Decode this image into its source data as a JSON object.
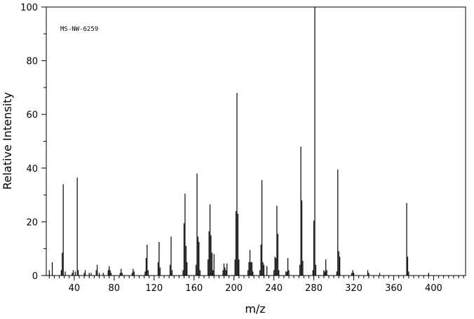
{
  "chart_data": {
    "type": "bar",
    "spectrum_id": "MS-NW-6259",
    "xlabel": "m/z",
    "ylabel": "Relative Intensity",
    "xlim": [
      12,
      432
    ],
    "ylim": [
      0,
      100
    ],
    "xticks": [
      40,
      80,
      120,
      160,
      200,
      240,
      280,
      320,
      360,
      400
    ],
    "yticks": [
      0,
      20,
      40,
      60,
      80,
      100
    ],
    "grid": false,
    "peaks": [
      {
        "mz": 15,
        "intensity": 2
      },
      {
        "mz": 18,
        "intensity": 5
      },
      {
        "mz": 27,
        "intensity": 2
      },
      {
        "mz": 28,
        "intensity": 8.5
      },
      {
        "mz": 29,
        "intensity": 34
      },
      {
        "mz": 31,
        "intensity": 1.5
      },
      {
        "mz": 38,
        "intensity": 1
      },
      {
        "mz": 39,
        "intensity": 2
      },
      {
        "mz": 41,
        "intensity": 1.5
      },
      {
        "mz": 43,
        "intensity": 36.5
      },
      {
        "mz": 44,
        "intensity": 2
      },
      {
        "mz": 50,
        "intensity": 1
      },
      {
        "mz": 51,
        "intensity": 2
      },
      {
        "mz": 55,
        "intensity": 1
      },
      {
        "mz": 57,
        "intensity": 1
      },
      {
        "mz": 62,
        "intensity": 2
      },
      {
        "mz": 63,
        "intensity": 4
      },
      {
        "mz": 65,
        "intensity": 1
      },
      {
        "mz": 69,
        "intensity": 1
      },
      {
        "mz": 74,
        "intensity": 2
      },
      {
        "mz": 75,
        "intensity": 3.5
      },
      {
        "mz": 76,
        "intensity": 2
      },
      {
        "mz": 77,
        "intensity": 1
      },
      {
        "mz": 86,
        "intensity": 1
      },
      {
        "mz": 87,
        "intensity": 2.5
      },
      {
        "mz": 88,
        "intensity": 1
      },
      {
        "mz": 98,
        "intensity": 1
      },
      {
        "mz": 99,
        "intensity": 2.5
      },
      {
        "mz": 100,
        "intensity": 1.5
      },
      {
        "mz": 111,
        "intensity": 1.5
      },
      {
        "mz": 112,
        "intensity": 6.5
      },
      {
        "mz": 113,
        "intensity": 11.5
      },
      {
        "mz": 114,
        "intensity": 2
      },
      {
        "mz": 124,
        "intensity": 5
      },
      {
        "mz": 125,
        "intensity": 12.5
      },
      {
        "mz": 126,
        "intensity": 3
      },
      {
        "mz": 136,
        "intensity": 4
      },
      {
        "mz": 137,
        "intensity": 14.5
      },
      {
        "mz": 138,
        "intensity": 2
      },
      {
        "mz": 149,
        "intensity": 2
      },
      {
        "mz": 150,
        "intensity": 19.5
      },
      {
        "mz": 151,
        "intensity": 30.5
      },
      {
        "mz": 152,
        "intensity": 11
      },
      {
        "mz": 153,
        "intensity": 5
      },
      {
        "mz": 162,
        "intensity": 4
      },
      {
        "mz": 163,
        "intensity": 38
      },
      {
        "mz": 164,
        "intensity": 14.5
      },
      {
        "mz": 165,
        "intensity": 12.5
      },
      {
        "mz": 166,
        "intensity": 2
      },
      {
        "mz": 174,
        "intensity": 6
      },
      {
        "mz": 175,
        "intensity": 16.5
      },
      {
        "mz": 176,
        "intensity": 26.5
      },
      {
        "mz": 177,
        "intensity": 15
      },
      {
        "mz": 178,
        "intensity": 8.5
      },
      {
        "mz": 179,
        "intensity": 2
      },
      {
        "mz": 180,
        "intensity": 8
      },
      {
        "mz": 189,
        "intensity": 2
      },
      {
        "mz": 190,
        "intensity": 4.5
      },
      {
        "mz": 191,
        "intensity": 3
      },
      {
        "mz": 192,
        "intensity": 2
      },
      {
        "mz": 193,
        "intensity": 4.5
      },
      {
        "mz": 201,
        "intensity": 6
      },
      {
        "mz": 202,
        "intensity": 24
      },
      {
        "mz": 203,
        "intensity": 68
      },
      {
        "mz": 204,
        "intensity": 23
      },
      {
        "mz": 205,
        "intensity": 6
      },
      {
        "mz": 214,
        "intensity": 2
      },
      {
        "mz": 215,
        "intensity": 5
      },
      {
        "mz": 216,
        "intensity": 9.5
      },
      {
        "mz": 217,
        "intensity": 5
      },
      {
        "mz": 218,
        "intensity": 5
      },
      {
        "mz": 219,
        "intensity": 1.5
      },
      {
        "mz": 226,
        "intensity": 2
      },
      {
        "mz": 227,
        "intensity": 11.5
      },
      {
        "mz": 228,
        "intensity": 35.5
      },
      {
        "mz": 229,
        "intensity": 5
      },
      {
        "mz": 230,
        "intensity": 4
      },
      {
        "mz": 233,
        "intensity": 3.5
      },
      {
        "mz": 240,
        "intensity": 2
      },
      {
        "mz": 241,
        "intensity": 7
      },
      {
        "mz": 242,
        "intensity": 6.5
      },
      {
        "mz": 243,
        "intensity": 26
      },
      {
        "mz": 244,
        "intensity": 15.5
      },
      {
        "mz": 245,
        "intensity": 2
      },
      {
        "mz": 252,
        "intensity": 1.5
      },
      {
        "mz": 253,
        "intensity": 1.5
      },
      {
        "mz": 254,
        "intensity": 6.5
      },
      {
        "mz": 255,
        "intensity": 2
      },
      {
        "mz": 266,
        "intensity": 4
      },
      {
        "mz": 267,
        "intensity": 48
      },
      {
        "mz": 268,
        "intensity": 28
      },
      {
        "mz": 269,
        "intensity": 5.5
      },
      {
        "mz": 279,
        "intensity": 2
      },
      {
        "mz": 280,
        "intensity": 20.5
      },
      {
        "mz": 281,
        "intensity": 100
      },
      {
        "mz": 282,
        "intensity": 4
      },
      {
        "mz": 290,
        "intensity": 2
      },
      {
        "mz": 291,
        "intensity": 1.5
      },
      {
        "mz": 292,
        "intensity": 6
      },
      {
        "mz": 293,
        "intensity": 2
      },
      {
        "mz": 303,
        "intensity": 1.5
      },
      {
        "mz": 304,
        "intensity": 39.5
      },
      {
        "mz": 305,
        "intensity": 9
      },
      {
        "mz": 306,
        "intensity": 7
      },
      {
        "mz": 318,
        "intensity": 1
      },
      {
        "mz": 319,
        "intensity": 2
      },
      {
        "mz": 320,
        "intensity": 1
      },
      {
        "mz": 334,
        "intensity": 2
      },
      {
        "mz": 335,
        "intensity": 1
      },
      {
        "mz": 346,
        "intensity": 1
      },
      {
        "mz": 373,
        "intensity": 27
      },
      {
        "mz": 374,
        "intensity": 7
      },
      {
        "mz": 375,
        "intensity": 1.5
      },
      {
        "mz": 395,
        "intensity": 1
      }
    ]
  }
}
